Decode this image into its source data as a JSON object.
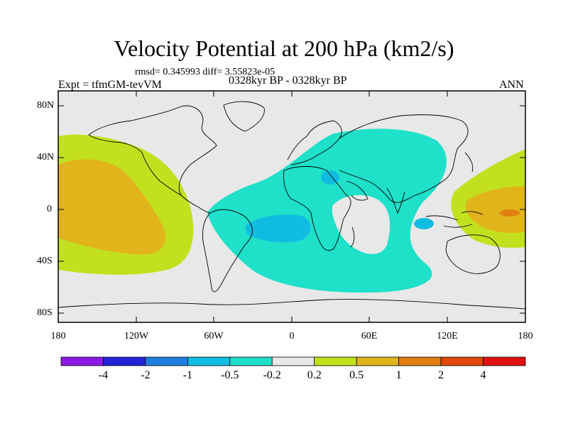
{
  "title": "Velocity Potential at 200 hPa (km2/s)",
  "stats": "rmsd= 0.345993 diff= 3.55823e-05",
  "experiment": "Expt = tfmGM-tevVM",
  "period": "0328kyr BP - 0328kyr BP",
  "season": "ANN",
  "lat_labels": [
    "80N",
    "40N",
    "0",
    "40S",
    "80S"
  ],
  "lon_labels": [
    "180",
    "120W",
    "60W",
    "0",
    "60E",
    "120E",
    "180"
  ],
  "colorbar": {
    "labels": [
      "-4",
      "-2",
      "-1",
      "-0.5",
      "-0.2",
      "0.2",
      "0.5",
      "1",
      "2",
      "4"
    ],
    "colors": [
      "#8c1ae6",
      "#2424d6",
      "#1f7ee0",
      "#10bde0",
      "#1fe0c8",
      "#e8e8e8",
      "#c3e01f",
      "#e0b41a",
      "#e07e10",
      "#e04a0a",
      "#e01010"
    ]
  }
}
